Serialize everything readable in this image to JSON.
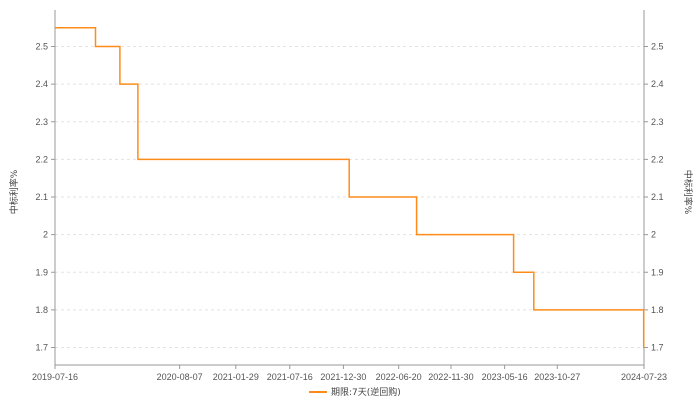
{
  "chart_data": {
    "type": "line",
    "ylabel_left": "中标利率%",
    "ylabel_right": "中标利率%",
    "ylim": [
      1.65,
      2.55
    ],
    "yticks": [
      "1.7",
      "1.8",
      "1.9",
      "2",
      "2.1",
      "2.2",
      "2.3",
      "2.4",
      "2.5"
    ],
    "xticks": [
      "2019-07-16",
      "2020-08-07",
      "2021-01-29",
      "2021-07-16",
      "2021-12-30",
      "2022-06-20",
      "2022-11-30",
      "2023-05-16",
      "2023-10-27",
      "2024-07-23"
    ],
    "xlim": [
      "2019-07-16",
      "2024-07-23"
    ],
    "grid": true,
    "legend_position": "bottom",
    "series": [
      {
        "name": "期限:7天(逆回购)",
        "color": "#ff8c1a",
        "step": true,
        "points": [
          [
            "2019-07-16",
            2.55
          ],
          [
            "2019-11-19",
            2.5
          ],
          [
            "2020-02-03",
            2.4
          ],
          [
            "2020-03-30",
            2.2
          ],
          [
            "2022-01-17",
            2.1
          ],
          [
            "2022-08-15",
            2.0
          ],
          [
            "2023-06-13",
            1.9
          ],
          [
            "2023-08-15",
            1.8
          ],
          [
            "2024-07-22",
            1.7
          ]
        ]
      }
    ]
  }
}
